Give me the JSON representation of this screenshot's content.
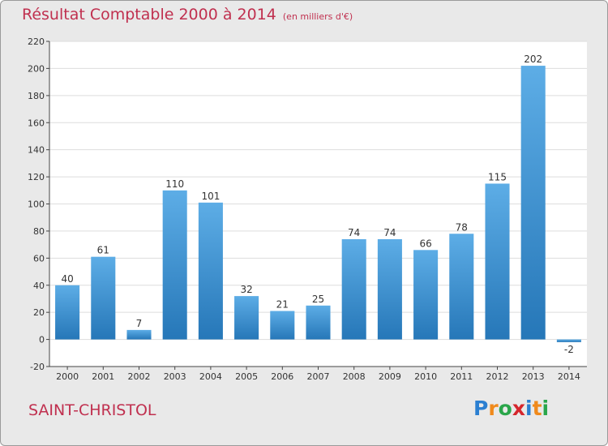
{
  "header": {
    "title": "Résultat Comptable 2000 à 2014",
    "subtitle": "(en milliers d'€)"
  },
  "footer": {
    "commune": "SAINT-CHRISTOL",
    "logo_letters": [
      {
        "char": "P",
        "color": "#2b7fd1"
      },
      {
        "char": "r",
        "color": "#f08a1c"
      },
      {
        "char": "o",
        "color": "#2aa64a"
      },
      {
        "char": "x",
        "color": "#d5262d"
      },
      {
        "char": "i",
        "color": "#2b7fd1"
      },
      {
        "char": "t",
        "color": "#f08a1c"
      },
      {
        "char": "i",
        "color": "#2aa64a"
      }
    ]
  },
  "colors": {
    "bar_light": "#5dade6",
    "bar_dark": "#2677b8",
    "accent": "#c0304f",
    "plot_bg": "#ffffff",
    "grid": "#dddddd"
  },
  "chart_data": {
    "type": "bar",
    "title": "Résultat Comptable 2000 à 2014",
    "subtitle": "(en milliers d'€)",
    "xlabel": "",
    "ylabel": "",
    "categories": [
      "2000",
      "2001",
      "2002",
      "2003",
      "2004",
      "2005",
      "2006",
      "2007",
      "2008",
      "2009",
      "2010",
      "2011",
      "2012",
      "2013",
      "2014"
    ],
    "values": [
      40,
      61,
      7,
      110,
      101,
      32,
      21,
      25,
      74,
      74,
      66,
      78,
      115,
      202,
      -2
    ],
    "ylim": [
      -20,
      220
    ],
    "yticks": [
      -20,
      0,
      20,
      40,
      60,
      80,
      100,
      120,
      140,
      160,
      180,
      200,
      220
    ],
    "grid": true,
    "legend": "none"
  }
}
